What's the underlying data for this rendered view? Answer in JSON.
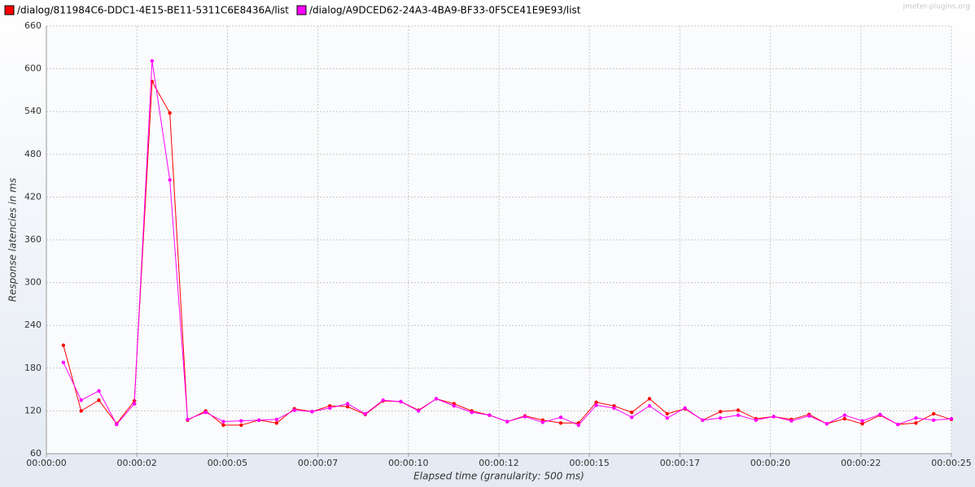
{
  "chart_data": {
    "type": "line",
    "watermark": "jmeter-plugins.org",
    "x_label": "Elapsed time (granularity: 500 ms)",
    "y_label": "Response latencies in ms",
    "x": [
      0.47,
      0.96,
      1.45,
      1.94,
      2.43,
      2.92,
      3.41,
      3.9,
      4.4,
      4.89,
      5.38,
      5.87,
      6.36,
      6.85,
      7.34,
      7.83,
      8.32,
      8.81,
      9.3,
      9.79,
      10.28,
      10.77,
      11.26,
      11.75,
      12.24,
      12.73,
      13.22,
      13.71,
      14.21,
      14.7,
      15.19,
      15.68,
      16.17,
      16.66,
      17.15,
      17.64,
      18.13,
      18.62,
      19.11,
      19.6,
      20.09,
      20.58,
      21.07,
      21.56,
      22.05,
      22.54,
      23.03,
      23.52,
      24.02,
      24.51,
      25.0
    ],
    "series": [
      {
        "name": "/dialog/811984C6-DDC1-4E15-BE11-5311C6E8436A/list",
        "color": "#ff0000",
        "values": [
          212,
          120,
          135,
          102,
          134,
          582,
          538,
          107,
          120,
          100,
          100,
          107,
          103,
          123,
          119,
          127,
          126,
          115,
          134,
          133,
          121,
          137,
          130,
          120,
          114,
          105,
          113,
          107,
          103,
          103,
          132,
          127,
          118,
          137,
          116,
          123,
          107,
          119,
          121,
          109,
          112,
          108,
          115,
          102,
          109,
          102,
          114,
          101,
          103,
          116,
          108
        ]
      },
      {
        "name": "/dialog/A9DCED62-24A3-4BA9-BF33-0F5CE41E9E93/list",
        "color": "#ff00ff",
        "values": [
          188,
          135,
          148,
          101,
          130,
          611,
          444,
          108,
          118,
          105,
          106,
          107,
          108,
          121,
          119,
          124,
          130,
          116,
          135,
          133,
          120,
          137,
          127,
          118,
          114,
          105,
          112,
          104,
          111,
          100,
          128,
          124,
          111,
          127,
          110,
          124,
          107,
          110,
          114,
          107,
          112,
          106,
          113,
          102,
          114,
          106,
          115,
          101,
          110,
          107,
          109
        ]
      }
    ],
    "xlim": [
      0,
      25
    ],
    "xticks": [
      {
        "value": 0,
        "label": "00:00:00"
      },
      {
        "value": 2.5,
        "label": "00:00:02"
      },
      {
        "value": 5,
        "label": "00:00:05"
      },
      {
        "value": 7.5,
        "label": "00:00:07"
      },
      {
        "value": 10,
        "label": "00:00:10"
      },
      {
        "value": 12.5,
        "label": "00:00:12"
      },
      {
        "value": 15,
        "label": "00:00:15"
      },
      {
        "value": 17.5,
        "label": "00:00:17"
      },
      {
        "value": 20,
        "label": "00:00:20"
      },
      {
        "value": 22.5,
        "label": "00:00:22"
      },
      {
        "value": 25,
        "label": "00:00:25"
      }
    ],
    "ylim": [
      60,
      660
    ],
    "yticks": [
      60,
      120,
      180,
      240,
      300,
      360,
      420,
      480,
      540,
      600,
      660
    ],
    "grid": true
  }
}
